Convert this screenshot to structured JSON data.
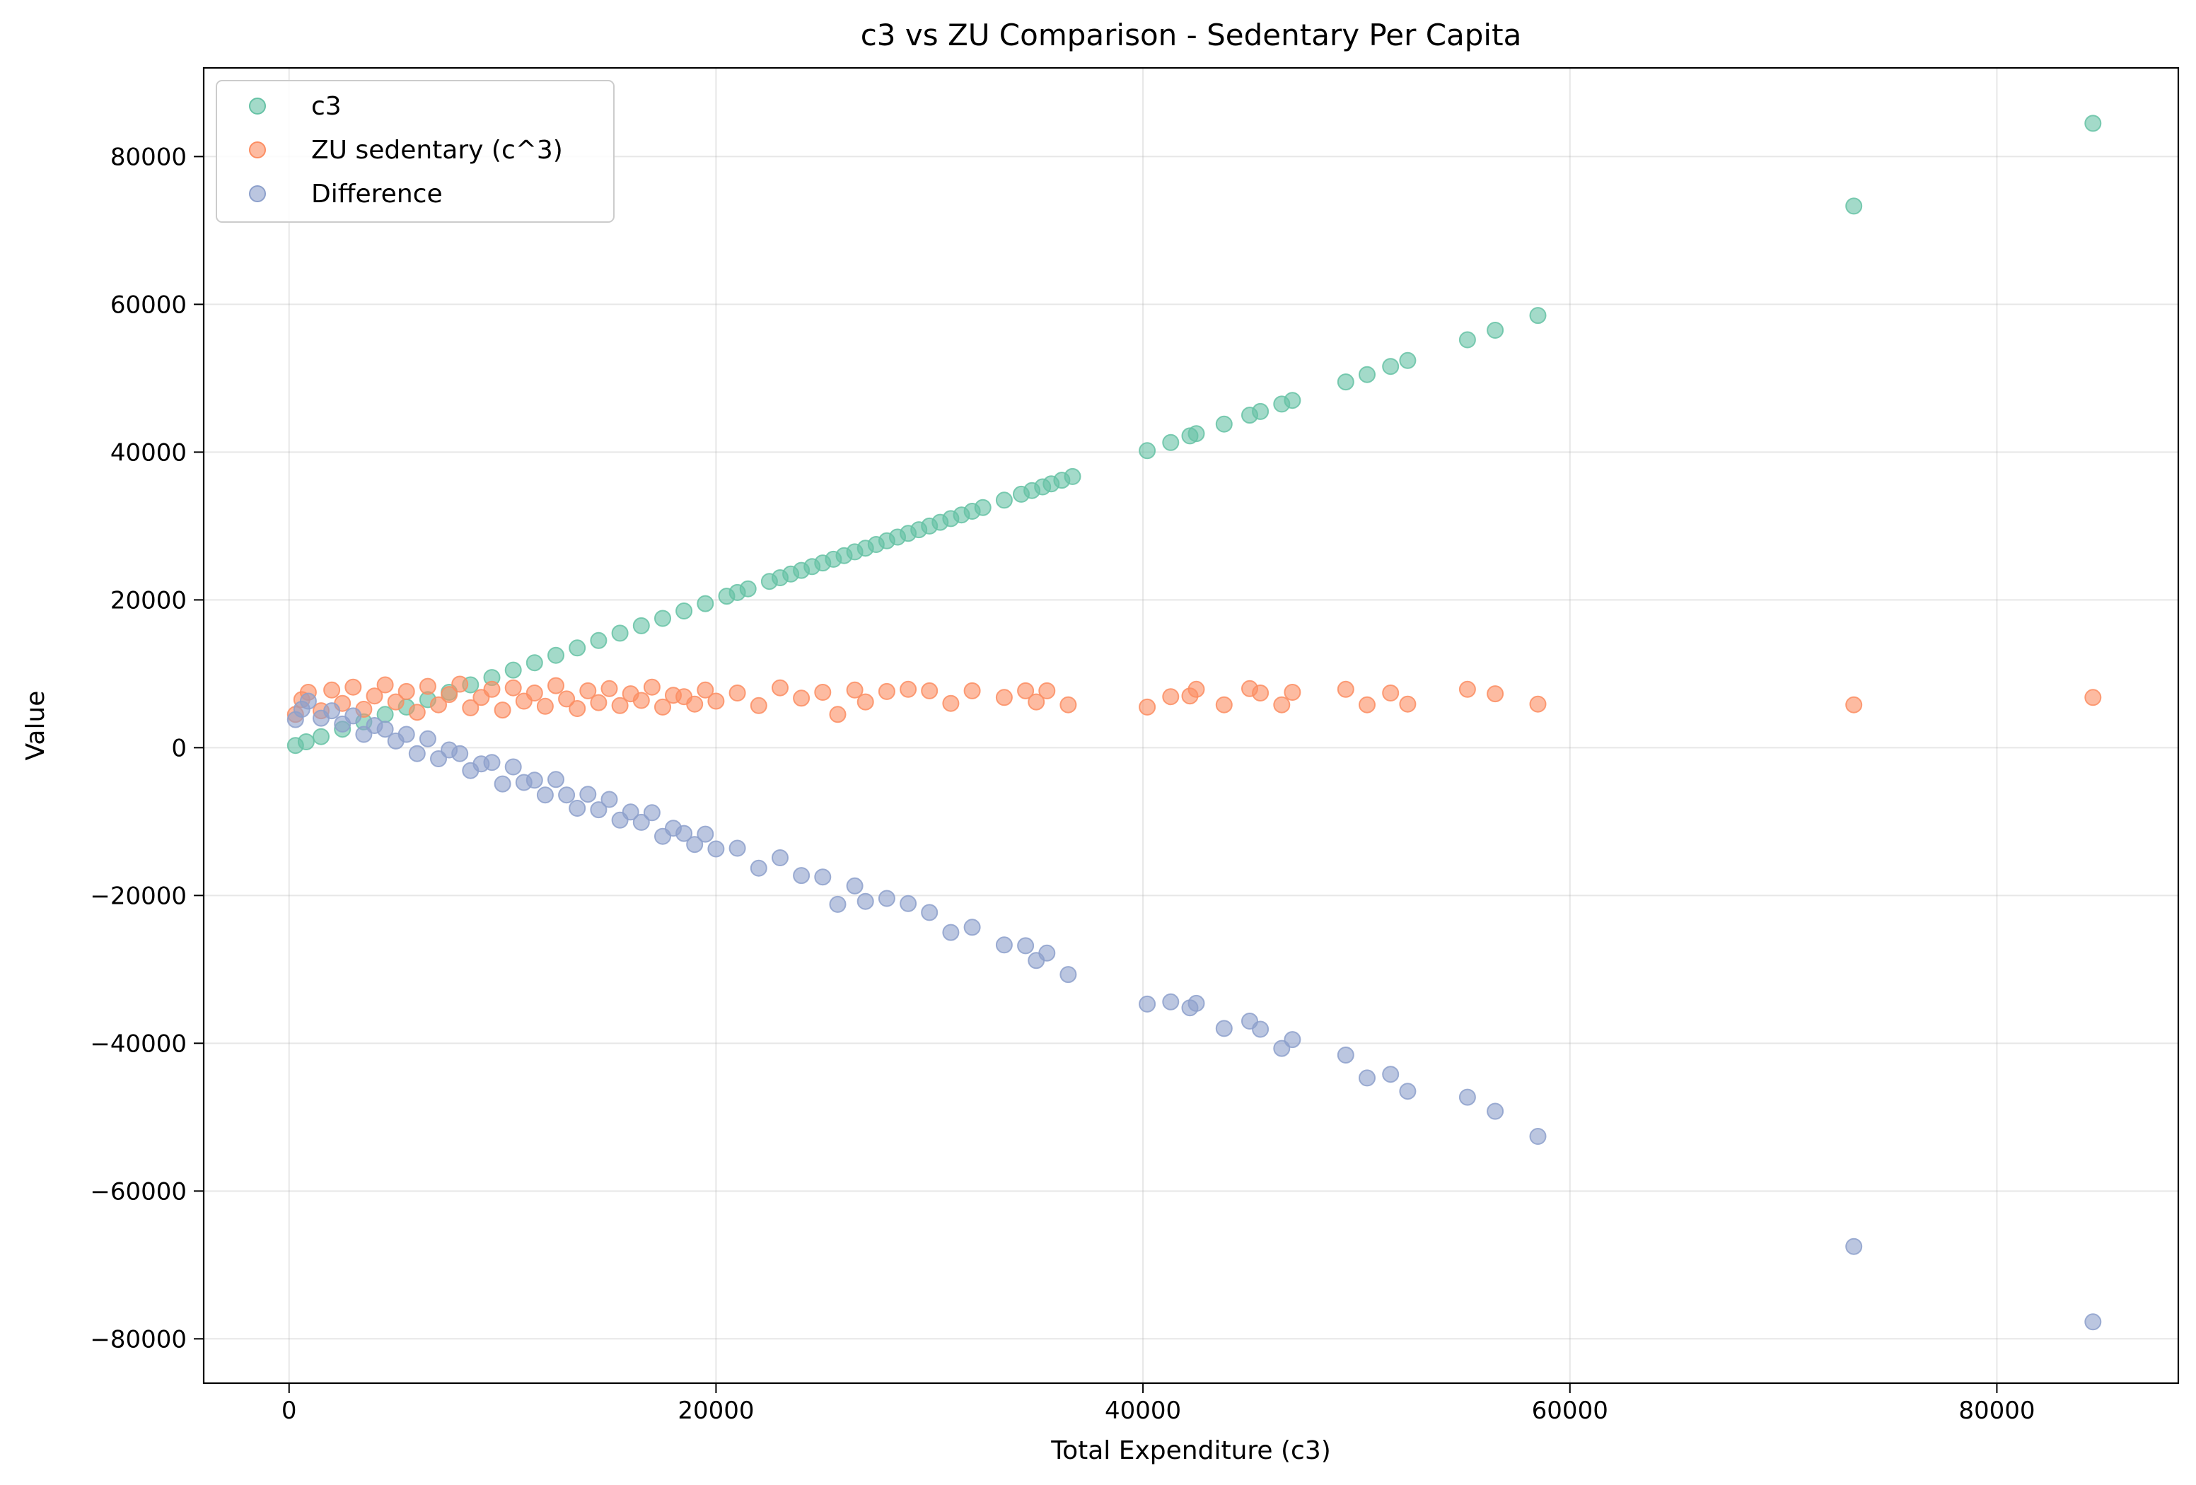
{
  "chart_data": {
    "type": "scatter",
    "title": "c3 vs ZU Comparison - Sedentary Per Capita",
    "xlabel": "Total Expenditure (c3)",
    "ylabel": "Value",
    "xlim": [
      -4000,
      88500
    ],
    "ylim": [
      -86000,
      92000
    ],
    "xticks": [
      0,
      20000,
      40000,
      60000,
      80000
    ],
    "xtick_labels": [
      "0",
      "20000",
      "40000",
      "60000",
      "80000"
    ],
    "yticks": [
      -80000,
      -60000,
      -40000,
      -20000,
      0,
      20000,
      40000,
      60000,
      80000
    ],
    "ytick_labels": [
      "−80000",
      "−60000",
      "−40000",
      "−20000",
      "0",
      "20000",
      "40000",
      "60000",
      "80000"
    ],
    "grid": true,
    "legend_position": "top-left",
    "series": [
      {
        "name": "c3",
        "color": "#66c2a5",
        "points": [
          [
            300,
            300
          ],
          [
            800,
            800
          ],
          [
            1500,
            1500
          ],
          [
            2500,
            2500
          ],
          [
            3500,
            3500
          ],
          [
            4500,
            4500
          ],
          [
            5500,
            5500
          ],
          [
            6500,
            6500
          ],
          [
            7500,
            7500
          ],
          [
            8500,
            8500
          ],
          [
            9500,
            9500
          ],
          [
            10500,
            10500
          ],
          [
            11500,
            11500
          ],
          [
            12500,
            12500
          ],
          [
            13500,
            13500
          ],
          [
            14500,
            14500
          ],
          [
            15500,
            15500
          ],
          [
            16500,
            16500
          ],
          [
            17500,
            17500
          ],
          [
            18500,
            18500
          ],
          [
            19500,
            19500
          ],
          [
            20500,
            20500
          ],
          [
            21000,
            21000
          ],
          [
            21500,
            21500
          ],
          [
            22500,
            22500
          ],
          [
            23000,
            23000
          ],
          [
            23500,
            23500
          ],
          [
            24000,
            24000
          ],
          [
            24500,
            24500
          ],
          [
            25000,
            25000
          ],
          [
            25500,
            25500
          ],
          [
            26000,
            26000
          ],
          [
            26500,
            26500
          ],
          [
            27000,
            27000
          ],
          [
            27500,
            27500
          ],
          [
            28000,
            28000
          ],
          [
            28500,
            28500
          ],
          [
            29000,
            29000
          ],
          [
            29500,
            29500
          ],
          [
            30000,
            30000
          ],
          [
            30500,
            30500
          ],
          [
            31000,
            31000
          ],
          [
            31500,
            31500
          ],
          [
            32000,
            32000
          ],
          [
            32500,
            32500
          ],
          [
            33500,
            33500
          ],
          [
            34300,
            34300
          ],
          [
            34800,
            34800
          ],
          [
            35300,
            35300
          ],
          [
            35700,
            35700
          ],
          [
            36200,
            36200
          ],
          [
            36700,
            36700
          ],
          [
            40200,
            40200
          ],
          [
            41300,
            41300
          ],
          [
            42200,
            42200
          ],
          [
            42500,
            42500
          ],
          [
            43800,
            43800
          ],
          [
            45000,
            45000
          ],
          [
            45500,
            45500
          ],
          [
            46500,
            46500
          ],
          [
            47000,
            47000
          ],
          [
            49500,
            49500
          ],
          [
            50500,
            50500
          ],
          [
            51600,
            51600
          ],
          [
            52400,
            52400
          ],
          [
            55200,
            55200
          ],
          [
            56500,
            56500
          ],
          [
            58500,
            58500
          ],
          [
            73300,
            73300
          ],
          [
            84500,
            84500
          ]
        ]
      },
      {
        "name": "ZU sedentary (c^3)",
        "color": "#fc8d62",
        "points": [
          [
            300,
            4500
          ],
          [
            600,
            6500
          ],
          [
            900,
            7500
          ],
          [
            1500,
            5000
          ],
          [
            2000,
            7800
          ],
          [
            2500,
            6000
          ],
          [
            3000,
            8200
          ],
          [
            3500,
            5200
          ],
          [
            4000,
            7000
          ],
          [
            4500,
            8500
          ],
          [
            5000,
            6200
          ],
          [
            5500,
            7600
          ],
          [
            6000,
            4800
          ],
          [
            6500,
            8300
          ],
          [
            7000,
            5800
          ],
          [
            7500,
            7200
          ],
          [
            8000,
            8600
          ],
          [
            8500,
            5400
          ],
          [
            9000,
            6800
          ],
          [
            9500,
            7900
          ],
          [
            10000,
            5100
          ],
          [
            10500,
            8100
          ],
          [
            11000,
            6300
          ],
          [
            11500,
            7400
          ],
          [
            12000,
            5600
          ],
          [
            12500,
            8400
          ],
          [
            13000,
            6600
          ],
          [
            13500,
            5300
          ],
          [
            14000,
            7700
          ],
          [
            14500,
            6100
          ],
          [
            15000,
            8000
          ],
          [
            15500,
            5700
          ],
          [
            16000,
            7300
          ],
          [
            16500,
            6400
          ],
          [
            17000,
            8200
          ],
          [
            17500,
            5500
          ],
          [
            18000,
            7100
          ],
          [
            18500,
            6900
          ],
          [
            19000,
            5900
          ],
          [
            19500,
            7800
          ],
          [
            20000,
            6300
          ],
          [
            21000,
            7400
          ],
          [
            22000,
            5700
          ],
          [
            23000,
            8100
          ],
          [
            24000,
            6700
          ],
          [
            25000,
            7500
          ],
          [
            25700,
            4500
          ],
          [
            26500,
            7800
          ],
          [
            27000,
            6200
          ],
          [
            28000,
            7600
          ],
          [
            29000,
            7900
          ],
          [
            30000,
            7700
          ],
          [
            31000,
            6000
          ],
          [
            32000,
            7700
          ],
          [
            33500,
            6800
          ],
          [
            34500,
            7700
          ],
          [
            35000,
            6200
          ],
          [
            35500,
            7700
          ],
          [
            36500,
            5800
          ],
          [
            40200,
            5500
          ],
          [
            41300,
            6900
          ],
          [
            42200,
            7000
          ],
          [
            42500,
            7900
          ],
          [
            43800,
            5800
          ],
          [
            45000,
            8000
          ],
          [
            45500,
            7400
          ],
          [
            46500,
            5800
          ],
          [
            47000,
            7500
          ],
          [
            49500,
            7900
          ],
          [
            50500,
            5800
          ],
          [
            51600,
            7400
          ],
          [
            52400,
            5900
          ],
          [
            55200,
            7900
          ],
          [
            56500,
            7300
          ],
          [
            58500,
            5900
          ],
          [
            73300,
            5800
          ],
          [
            84500,
            6800
          ]
        ]
      },
      {
        "name": "Difference",
        "color": "#8da0cb",
        "points": [
          [
            300,
            3800
          ],
          [
            600,
            5200
          ],
          [
            900,
            6300
          ],
          [
            1500,
            4000
          ],
          [
            2000,
            5000
          ],
          [
            2500,
            3200
          ],
          [
            3000,
            4300
          ],
          [
            3500,
            1800
          ],
          [
            4000,
            3000
          ],
          [
            4500,
            2500
          ],
          [
            5000,
            900
          ],
          [
            5500,
            1800
          ],
          [
            6000,
            -800
          ],
          [
            6500,
            1200
          ],
          [
            7000,
            -1500
          ],
          [
            7500,
            -300
          ],
          [
            8000,
            -800
          ],
          [
            8500,
            -3100
          ],
          [
            9000,
            -2200
          ],
          [
            9500,
            -2000
          ],
          [
            10000,
            -4900
          ],
          [
            10500,
            -2600
          ],
          [
            11000,
            -4700
          ],
          [
            11500,
            -4400
          ],
          [
            12000,
            -6400
          ],
          [
            12500,
            -4300
          ],
          [
            13000,
            -6400
          ],
          [
            13500,
            -8200
          ],
          [
            14000,
            -6300
          ],
          [
            14500,
            -8400
          ],
          [
            15000,
            -7000
          ],
          [
            15500,
            -9800
          ],
          [
            16000,
            -8700
          ],
          [
            16500,
            -10100
          ],
          [
            17000,
            -8800
          ],
          [
            17500,
            -12000
          ],
          [
            18000,
            -10900
          ],
          [
            18500,
            -11600
          ],
          [
            19000,
            -13100
          ],
          [
            19500,
            -11700
          ],
          [
            20000,
            -13700
          ],
          [
            21000,
            -13600
          ],
          [
            22000,
            -16300
          ],
          [
            23000,
            -14900
          ],
          [
            24000,
            -17300
          ],
          [
            25000,
            -17500
          ],
          [
            25700,
            -21200
          ],
          [
            26500,
            -18700
          ],
          [
            27000,
            -20800
          ],
          [
            28000,
            -20400
          ],
          [
            29000,
            -21100
          ],
          [
            30000,
            -22300
          ],
          [
            31000,
            -25000
          ],
          [
            32000,
            -24300
          ],
          [
            33500,
            -26700
          ],
          [
            34500,
            -26800
          ],
          [
            35000,
            -28800
          ],
          [
            35500,
            -27800
          ],
          [
            36500,
            -30700
          ],
          [
            40200,
            -34700
          ],
          [
            41300,
            -34400
          ],
          [
            42200,
            -35200
          ],
          [
            42500,
            -34600
          ],
          [
            43800,
            -38000
          ],
          [
            45000,
            -37000
          ],
          [
            45500,
            -38100
          ],
          [
            46500,
            -40700
          ],
          [
            47000,
            -39500
          ],
          [
            49500,
            -41600
          ],
          [
            50500,
            -44700
          ],
          [
            51600,
            -44200
          ],
          [
            52400,
            -46500
          ],
          [
            55200,
            -47300
          ],
          [
            56500,
            -49200
          ],
          [
            58500,
            -52600
          ],
          [
            73300,
            -67500
          ],
          [
            84500,
            -77700
          ]
        ]
      }
    ]
  }
}
